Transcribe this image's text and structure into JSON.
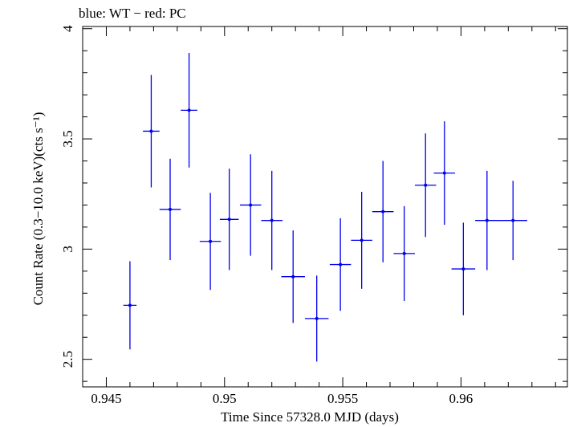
{
  "chart_data": {
    "type": "scatter",
    "title": "blue: WT − red: PC",
    "xlabel": "Time Since 57328.0 MJD (days)",
    "ylabel": "Count Rate (0.3−10.0 keV)(cts s⁻¹)",
    "xlim": [
      0.944,
      0.9645
    ],
    "ylim": [
      2.375,
      4.01
    ],
    "x_ticks": [
      0.945,
      0.95,
      0.955,
      0.96
    ],
    "x_tick_labels": [
      "0.945",
      "0.95",
      "0.955",
      "0.96"
    ],
    "y_ticks": [
      2.5,
      3,
      3.5,
      4
    ],
    "y_tick_labels": [
      "2.5",
      "3",
      "3.5",
      "4"
    ],
    "grid": false,
    "series": [
      {
        "color": "#0000ee",
        "points": [
          {
            "x": 0.946,
            "y": 2.745,
            "xerr": 0.00028,
            "yerr": 0.2
          },
          {
            "x": 0.9469,
            "y": 3.535,
            "xerr": 0.00035,
            "yerr": 0.255
          },
          {
            "x": 0.9477,
            "y": 3.18,
            "xerr": 0.00045,
            "yerr": 0.23
          },
          {
            "x": 0.9485,
            "y": 3.63,
            "xerr": 0.00035,
            "yerr": 0.26
          },
          {
            "x": 0.9494,
            "y": 3.035,
            "xerr": 0.00045,
            "yerr": 0.22
          },
          {
            "x": 0.9502,
            "y": 3.135,
            "xerr": 0.0004,
            "yerr": 0.23
          },
          {
            "x": 0.9511,
            "y": 3.2,
            "xerr": 0.00045,
            "yerr": 0.23
          },
          {
            "x": 0.952,
            "y": 3.13,
            "xerr": 0.00045,
            "yerr": 0.225
          },
          {
            "x": 0.9529,
            "y": 2.875,
            "xerr": 0.0005,
            "yerr": 0.21
          },
          {
            "x": 0.9539,
            "y": 2.685,
            "xerr": 0.0005,
            "yerr": 0.195
          },
          {
            "x": 0.9549,
            "y": 2.93,
            "xerr": 0.00045,
            "yerr": 0.21
          },
          {
            "x": 0.9558,
            "y": 3.04,
            "xerr": 0.00045,
            "yerr": 0.22
          },
          {
            "x": 0.9567,
            "y": 3.17,
            "xerr": 0.00045,
            "yerr": 0.23
          },
          {
            "x": 0.9576,
            "y": 2.98,
            "xerr": 0.00045,
            "yerr": 0.215
          },
          {
            "x": 0.9585,
            "y": 3.29,
            "xerr": 0.00045,
            "yerr": 0.235
          },
          {
            "x": 0.9593,
            "y": 3.345,
            "xerr": 0.00045,
            "yerr": 0.235
          },
          {
            "x": 0.9601,
            "y": 2.91,
            "xerr": 0.0005,
            "yerr": 0.21
          },
          {
            "x": 0.9611,
            "y": 3.13,
            "xerr": 0.0005,
            "yerr": 0.225
          },
          {
            "x": 0.9622,
            "y": 3.13,
            "xerr": 0.0006,
            "yerr": 0.18
          }
        ]
      }
    ]
  }
}
